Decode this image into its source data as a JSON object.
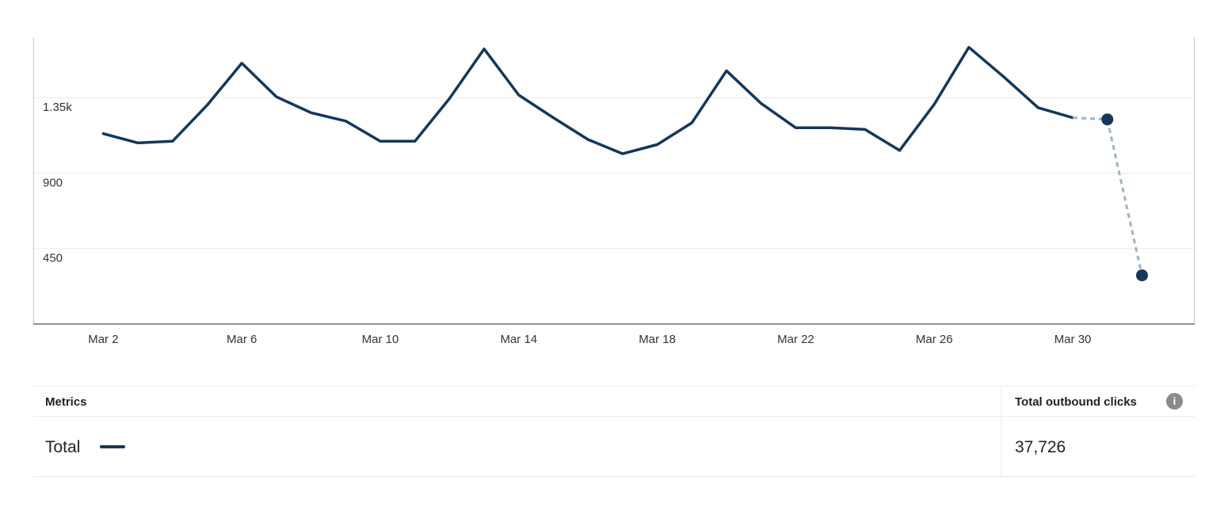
{
  "chart_data": {
    "type": "line",
    "y_tick_labels": [
      "450",
      "900",
      "1.35k"
    ],
    "y_ticks": [
      450,
      900,
      1350
    ],
    "ylim": [
      0,
      1710
    ],
    "x_tick_labels": [
      "Mar 2",
      "Mar 6",
      "Mar 10",
      "Mar 14",
      "Mar 18",
      "Mar 22",
      "Mar 26",
      "Mar 30"
    ],
    "x_tick_days": [
      2,
      6,
      10,
      14,
      18,
      22,
      26,
      30
    ],
    "xlim": [
      0,
      33.5
    ],
    "grid": "horizontal",
    "series": [
      {
        "name": "Total",
        "color": "#15375a",
        "x": [
          2,
          3,
          4,
          5,
          6,
          7,
          8,
          9,
          10,
          11,
          12,
          13,
          14,
          15,
          16,
          17,
          18,
          19,
          20,
          21,
          22,
          23,
          24,
          25,
          26,
          27,
          28,
          29,
          30
        ],
        "values": [
          1135,
          1080,
          1090,
          1305,
          1555,
          1355,
          1260,
          1210,
          1090,
          1090,
          1345,
          1640,
          1365,
          1230,
          1100,
          1015,
          1070,
          1200,
          1510,
          1315,
          1170,
          1170,
          1160,
          1035,
          1310,
          1650,
          1475,
          1290,
          1230
        ]
      }
    ],
    "projection": {
      "color": "#9fb3c5",
      "x": [
        30,
        31,
        32
      ],
      "values": [
        1230,
        1220,
        290
      ],
      "marker_days": [
        31,
        32
      ]
    }
  },
  "table": {
    "header_metrics": "Metrics",
    "header_clicks": "Total outbound clicks",
    "info_icon": "info-icon",
    "info_glyph": "i",
    "row_label": "Total",
    "row_value": "37,726"
  }
}
